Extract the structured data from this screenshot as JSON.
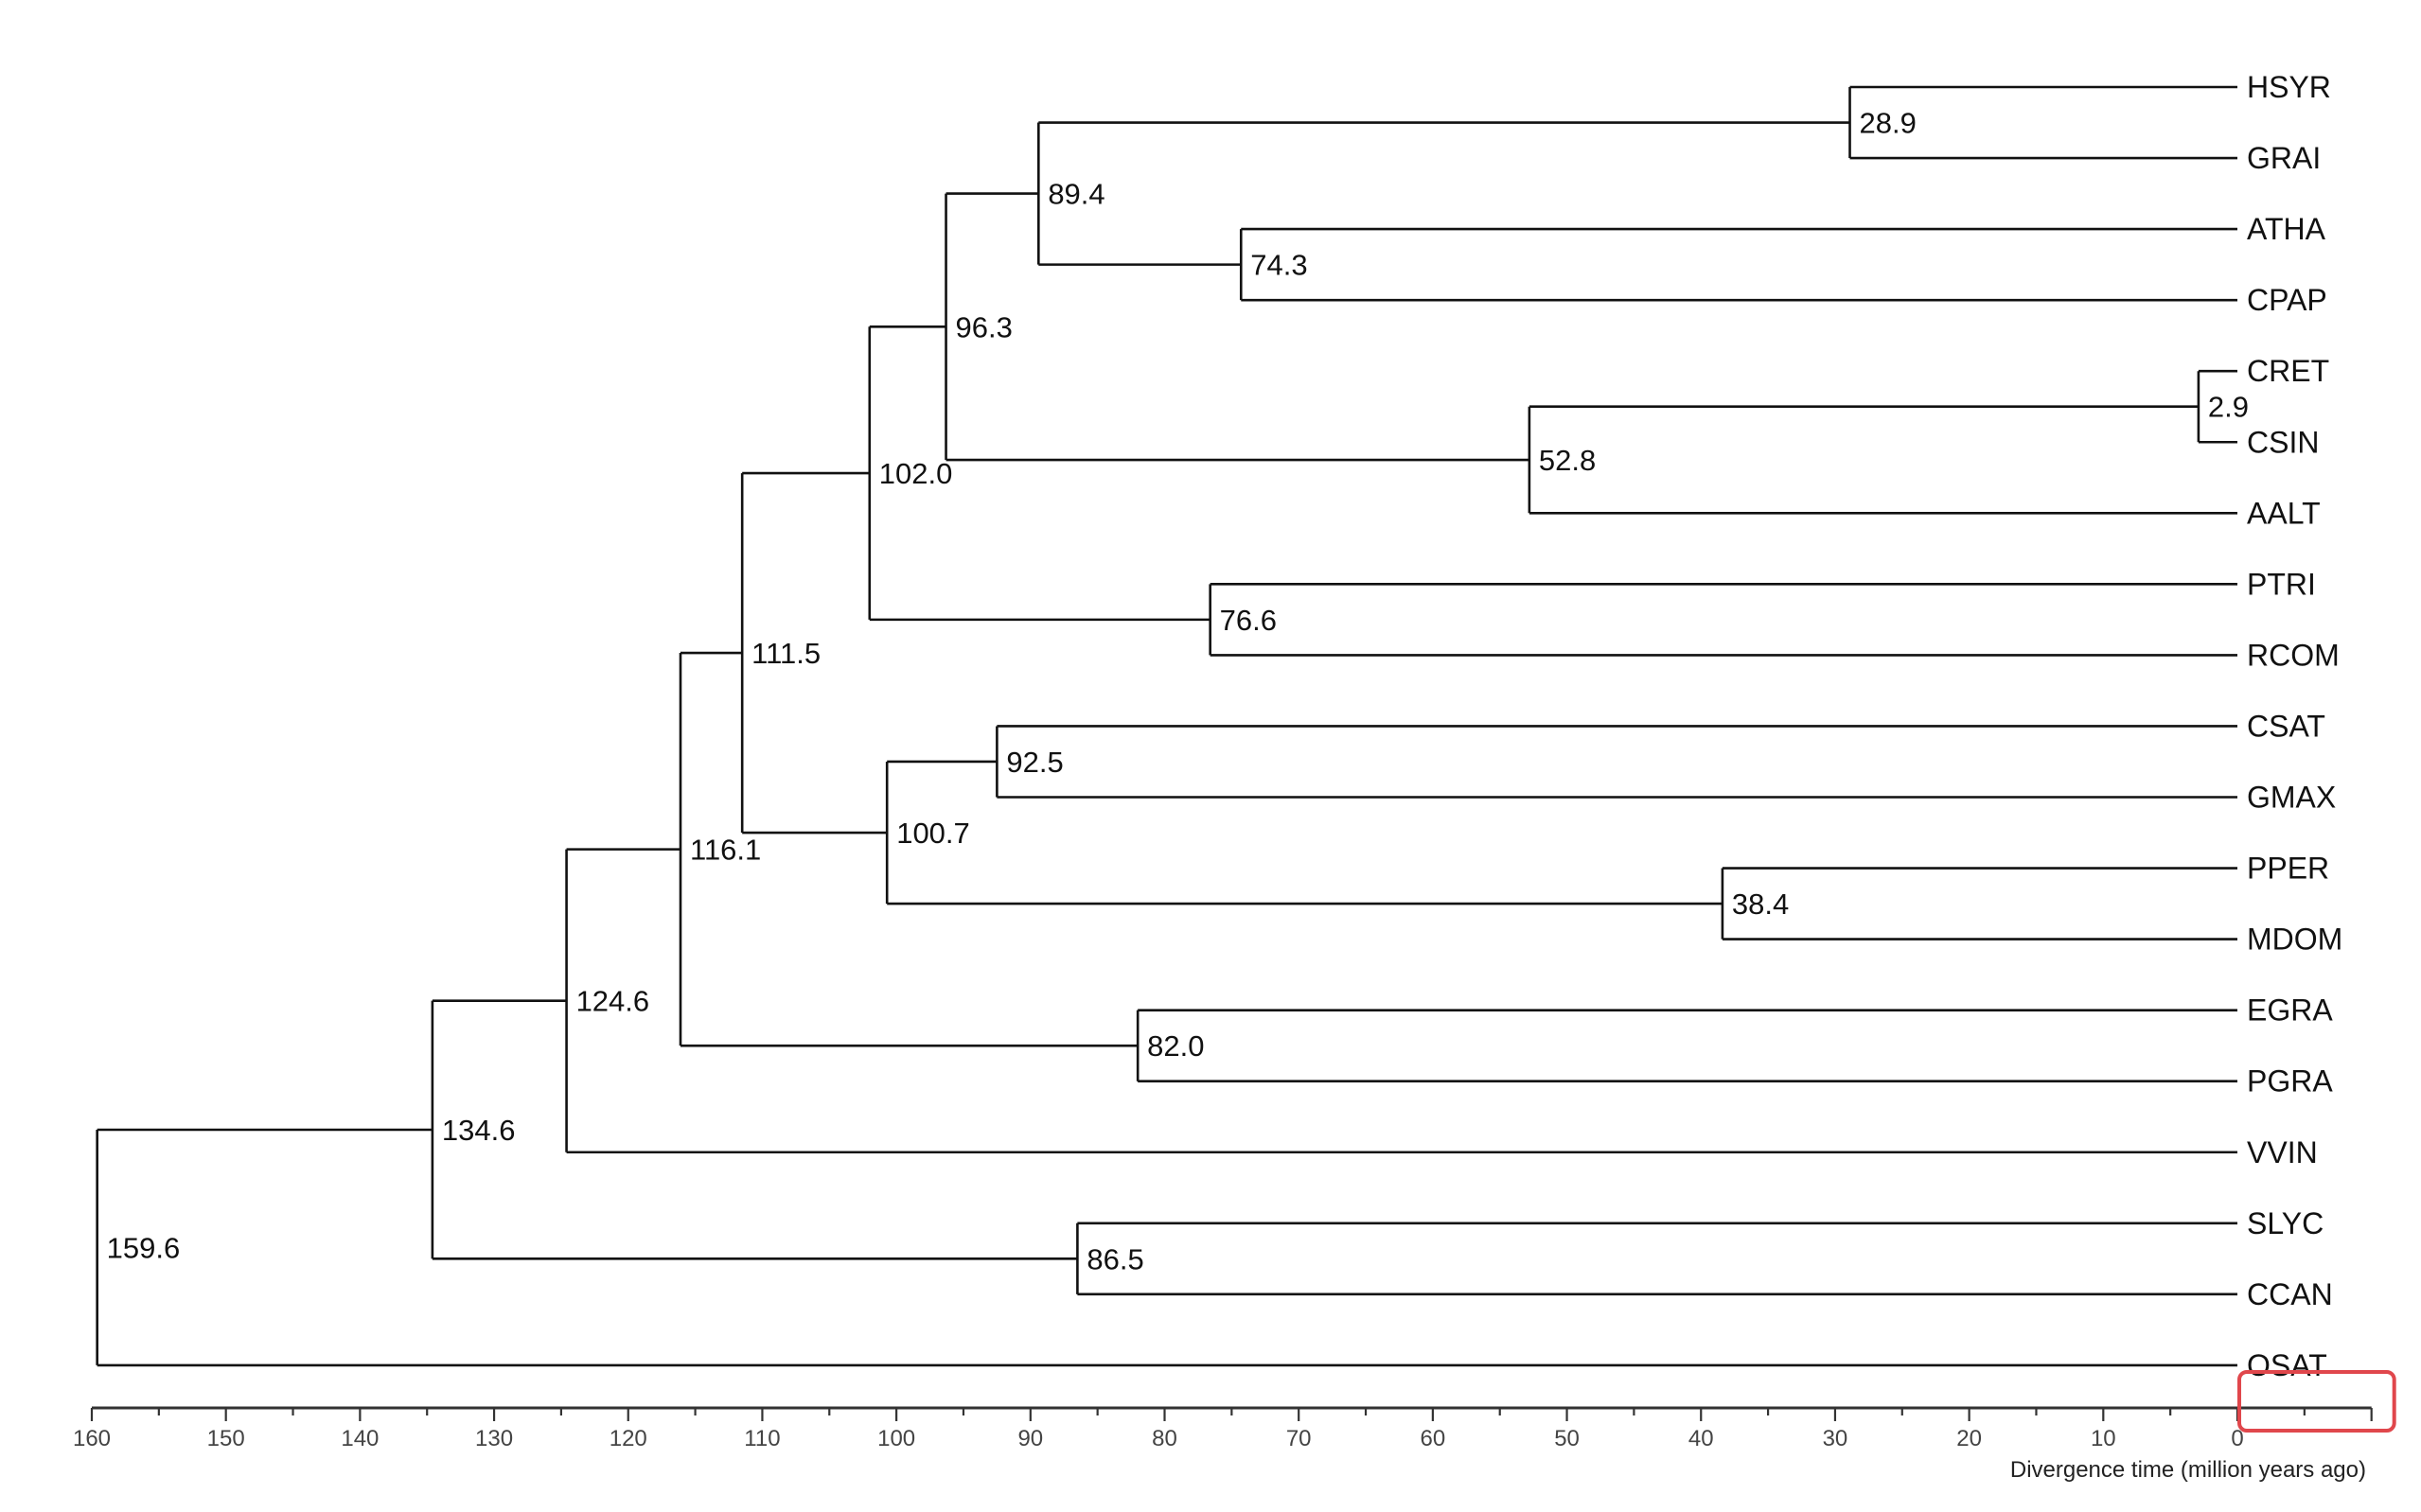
{
  "chart_data": {
    "type": "dendrogram",
    "xlabel": "Divergence time (million years ago)",
    "xlim": [
      160,
      0
    ],
    "x_ticks": [
      160,
      150,
      140,
      130,
      120,
      110,
      100,
      90,
      80,
      70,
      60,
      50,
      40,
      30,
      20,
      10,
      0
    ],
    "leaves": [
      "HSYR",
      "GRAI",
      "ATHA",
      "CPAP",
      "CRET",
      "CSIN",
      "AALT",
      "PTRI",
      "RCOM",
      "CSAT",
      "GMAX",
      "PPER",
      "MDOM",
      "EGRA",
      "PGRA",
      "VVIN",
      "SLYC",
      "CCAN",
      "OSAT"
    ],
    "nodes": [
      {
        "label": "28.9",
        "age": 28.9,
        "children": [
          "HSYR",
          "GRAI"
        ]
      },
      {
        "label": "74.3",
        "age": 74.3,
        "children": [
          "ATHA",
          "CPAP"
        ]
      },
      {
        "label": "89.4",
        "age": 89.4,
        "children": [
          "28.9",
          "74.3"
        ]
      },
      {
        "label": "2.9",
        "age": 2.9,
        "children": [
          "CRET",
          "CSIN"
        ]
      },
      {
        "label": "52.8",
        "age": 52.8,
        "children": [
          "2.9",
          "AALT"
        ]
      },
      {
        "label": "96.3",
        "age": 96.3,
        "children": [
          "89.4",
          "52.8"
        ]
      },
      {
        "label": "76.6",
        "age": 76.6,
        "children": [
          "PTRI",
          "RCOM"
        ]
      },
      {
        "label": "102.0",
        "age": 102.0,
        "children": [
          "96.3",
          "76.6"
        ]
      },
      {
        "label": "92.5",
        "age": 92.5,
        "children": [
          "CSAT",
          "GMAX"
        ]
      },
      {
        "label": "38.4",
        "age": 38.4,
        "children": [
          "PPER",
          "MDOM"
        ]
      },
      {
        "label": "100.7",
        "age": 100.7,
        "children": [
          "92.5",
          "38.4"
        ]
      },
      {
        "label": "111.5",
        "age": 111.5,
        "children": [
          "102.0",
          "100.7"
        ]
      },
      {
        "label": "82.0",
        "age": 82.0,
        "children": [
          "EGRA",
          "PGRA"
        ]
      },
      {
        "label": "116.1",
        "age": 116.1,
        "children": [
          "111.5",
          "82.0"
        ]
      },
      {
        "label": "124.6",
        "age": 124.6,
        "children": [
          "116.1",
          "VVIN"
        ]
      },
      {
        "label": "86.5",
        "age": 86.5,
        "children": [
          "SLYC",
          "CCAN"
        ]
      },
      {
        "label": "134.6",
        "age": 134.6,
        "children": [
          "124.6",
          "86.5"
        ]
      },
      {
        "label": "159.6",
        "age": 159.6,
        "children": [
          "134.6",
          "OSAT"
        ]
      }
    ]
  },
  "highlight": {
    "color": "#e0474c",
    "from": 0,
    "to": -10
  }
}
